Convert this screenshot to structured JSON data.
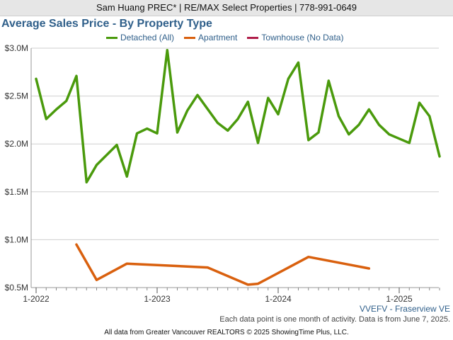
{
  "header": {
    "contact": "Sam Huang PREC* | RE/MAX Select Properties | 778-991-0649"
  },
  "chart_data": {
    "type": "line",
    "title": "Average Sales Price - By Property Type",
    "xlabel": "",
    "ylabel": "",
    "ylim": [
      0.5,
      3.0
    ],
    "y_ticks": [
      {
        "value": 3.0,
        "label": "$3.0M"
      },
      {
        "value": 2.5,
        "label": "$2.5M"
      },
      {
        "value": 2.0,
        "label": "$2.0M"
      },
      {
        "value": 1.5,
        "label": "$1.5M"
      },
      {
        "value": 1.0,
        "label": "$1.0M"
      },
      {
        "value": 0.5,
        "label": "$0.5M"
      }
    ],
    "x_ticks": [
      {
        "value": "2022-01",
        "label": "1-2022"
      },
      {
        "value": "2023-01",
        "label": "1-2023"
      },
      {
        "value": "2024-01",
        "label": "1-2024"
      },
      {
        "value": "2025-01",
        "label": "1-2025"
      }
    ],
    "x_range": [
      "2022-01",
      "2025-05"
    ],
    "grid": true,
    "legend_position": "top",
    "series": [
      {
        "name": "Detached (All)",
        "color": "#4a9a0c",
        "points": [
          [
            "2022-01",
            2.68
          ],
          [
            "2022-02",
            2.26
          ],
          [
            "2022-03",
            2.36
          ],
          [
            "2022-04",
            2.45
          ],
          [
            "2022-05",
            2.71
          ],
          [
            "2022-06",
            1.6
          ],
          [
            "2022-07",
            1.78
          ],
          [
            "2022-09",
            1.99
          ],
          [
            "2022-10",
            1.66
          ],
          [
            "2022-11",
            2.11
          ],
          [
            "2022-12",
            2.16
          ],
          [
            "2023-01",
            2.11
          ],
          [
            "2023-02",
            2.98
          ],
          [
            "2023-03",
            2.12
          ],
          [
            "2023-04",
            2.35
          ],
          [
            "2023-05",
            2.51
          ],
          [
            "2023-07",
            2.22
          ],
          [
            "2023-08",
            2.14
          ],
          [
            "2023-09",
            2.26
          ],
          [
            "2023-10",
            2.44
          ],
          [
            "2023-11",
            2.01
          ],
          [
            "2023-12",
            2.48
          ],
          [
            "2024-01",
            2.31
          ],
          [
            "2024-02",
            2.68
          ],
          [
            "2024-03",
            2.85
          ],
          [
            "2024-04",
            2.04
          ],
          [
            "2024-05",
            2.12
          ],
          [
            "2024-06",
            2.66
          ],
          [
            "2024-07",
            2.29
          ],
          [
            "2024-08",
            2.1
          ],
          [
            "2024-09",
            2.2
          ],
          [
            "2024-10",
            2.36
          ],
          [
            "2024-11",
            2.2
          ],
          [
            "2024-12",
            2.1
          ],
          [
            "2025-02",
            2.01
          ],
          [
            "2025-03",
            2.43
          ],
          [
            "2025-04",
            2.29
          ],
          [
            "2025-05",
            1.87
          ]
        ]
      },
      {
        "name": "Apartment",
        "color": "#d9600e",
        "points": [
          [
            "2022-05",
            0.95
          ],
          [
            "2022-07",
            0.58
          ],
          [
            "2022-10",
            0.75
          ],
          [
            "2023-06",
            0.71
          ],
          [
            "2023-10",
            0.53
          ],
          [
            "2023-11",
            0.54
          ],
          [
            "2024-04",
            0.82
          ],
          [
            "2024-10",
            0.7
          ]
        ]
      },
      {
        "name": "Townhouse (No Data)",
        "color": "#b01e4a",
        "points": []
      }
    ]
  },
  "footer": {
    "region": "VVEFV - Fraserview VE",
    "note": "Each data point is one month of activity. Data is from June 7, 2025.",
    "source": "All data from Greater Vancouver REALTORS © 2025 ShowingTime Plus, LLC."
  }
}
